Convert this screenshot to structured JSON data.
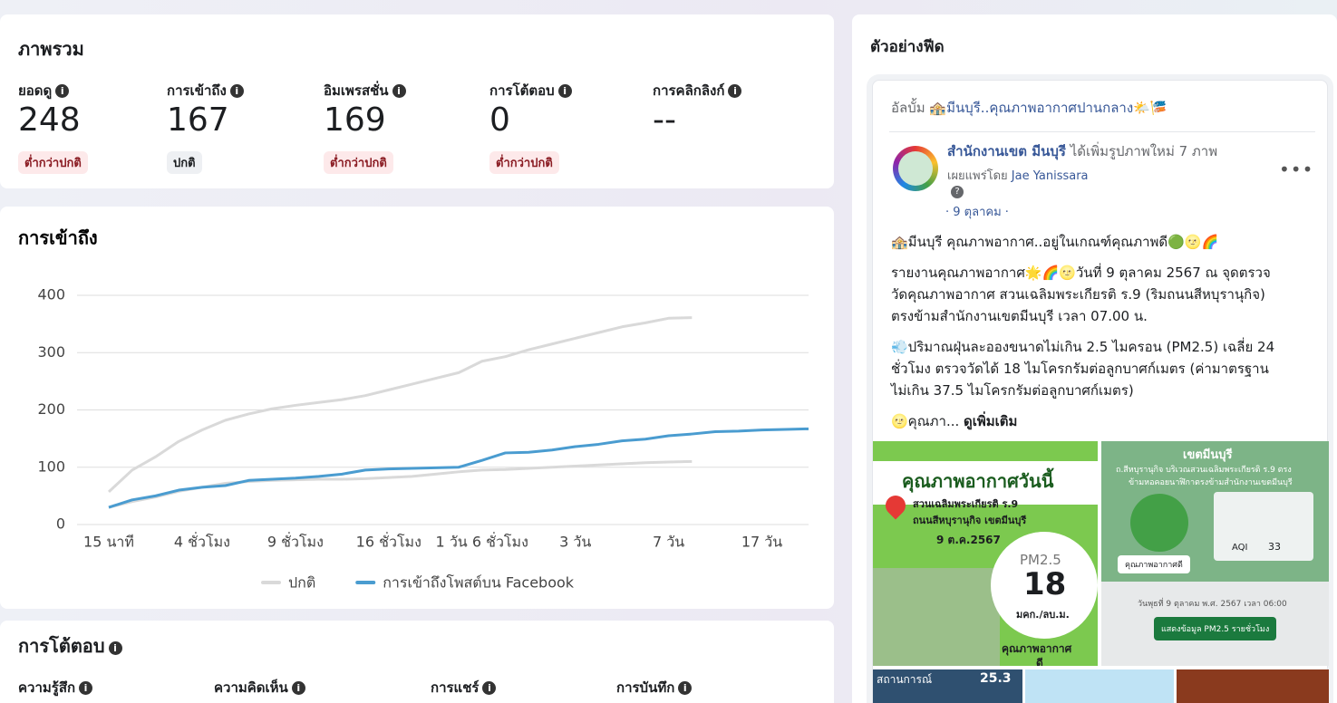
{
  "overview": {
    "title": "ภาพรวม",
    "metrics": [
      {
        "label": "ยอดดู",
        "value": 248,
        "status": "ต่ำกว่าปกติ"
      },
      {
        "label": "การเข้าถึง",
        "value": 167,
        "status": "ปกติ"
      },
      {
        "label": "อิมเพรสชั่น",
        "value": 169,
        "status": "ต่ำกว่าปกติ"
      },
      {
        "label": "การโต้ตอบ",
        "value": 0,
        "status": "ต่ำกว่าปกติ"
      },
      {
        "label": "การคลิกลิงก์",
        "value": "--"
      }
    ]
  },
  "chart_data": {
    "type": "line",
    "title": "การเข้าถึง",
    "categories": [
      "15 นาที",
      null,
      null,
      null,
      "4 ชั่วโมง",
      null,
      null,
      null,
      "9 ชั่วโมง",
      null,
      null,
      null,
      "16 ชั่วโมง",
      null,
      null,
      null,
      "1 วัน 6 ชั่วโมง",
      null,
      null,
      null,
      "3 วัน",
      null,
      null,
      null,
      "7 วัน",
      null,
      null,
      null,
      "17 วัน",
      null,
      null
    ],
    "series": [
      {
        "name": "ปกติ",
        "color": "#d9d9d9",
        "values": [
          57,
          95,
          118,
          145,
          165,
          182,
          193,
          202,
          208,
          213,
          218,
          225,
          235,
          245,
          255,
          265,
          285,
          293,
          305,
          315,
          325,
          335,
          345,
          352,
          360,
          361,
          null,
          null,
          null,
          null,
          null
        ],
        "lower_values": [
          30,
          40,
          48,
          58,
          65,
          72,
          75,
          77,
          78,
          79,
          79,
          80,
          82,
          84,
          88,
          92,
          95,
          96,
          98,
          100,
          102,
          104,
          106,
          108,
          109,
          110,
          null,
          null,
          null,
          null,
          null
        ]
      },
      {
        "name": "การเข้าถึงโพสต์บน Facebook",
        "color": "#4a9cd0",
        "values": [
          30,
          43,
          50,
          60,
          65,
          68,
          77,
          79,
          81,
          84,
          88,
          95,
          97,
          98,
          99,
          100,
          112,
          125,
          126,
          130,
          136,
          140,
          146,
          149,
          155,
          158,
          162,
          163,
          165,
          166,
          167
        ]
      }
    ],
    "ylim": [
      0,
      400
    ],
    "yticks": [
      0,
      100,
      200,
      300,
      400
    ],
    "grid": true,
    "legend": "bottom"
  },
  "interactions": {
    "title": "การโต้ตอบ",
    "columns": [
      "ความรู้สึก",
      "ความคิดเห็น",
      "การแชร์",
      "การบันทึก"
    ]
  },
  "feed": {
    "title": "ตัวอย่างฟีด",
    "album_prefix": "อัลบั้ม",
    "album_name": "🏤มีนบุรี..คุณภาพอากาศปานกลาง🌤️🎏",
    "page_name": "สำนักงานเขต มีนบุรี",
    "action": "ได้เพิ่มรูปภาพใหม่ 7 ภาพ",
    "published_by": "เผยแพร่โดย",
    "publisher": "Jae Yanissara",
    "date": "· 9 ตุลาคม ·",
    "paragraphs": [
      [
        "🏤มีนบุรี คุณภาพอากาศ..อยู่ในเกณฑ์คุณภาพดี🟢🌝🌈"
      ],
      [
        "รายงานคุณภาพอากาศ🌟🌈🌝วันที่ 9 ตุลาคม 2567 ณ จุดตรวจ",
        "วัดคุณภาพอากาศ สวนเฉลิมพระเกียรติ ร.9 (ริมถนนสีหบุรานุกิจ)",
        "ตรงข้ามสำนักงานเขตมีนบุรี เวลา 07.00 น."
      ],
      [
        "💨ปริมาณฝุ่นละอองขนาดไม่เกิน 2.5 ไมครอน (PM2.5) เฉลี่ย 24",
        "ชั่วโมง ตรวจวัดได้ 18 ไมโครกรัมต่อลูกบาศก์เมตร (ค่ามาตรฐาน",
        "ไม่เกิน 37.5 ไมโครกรัมต่อลูกบาศก์เมตร)"
      ]
    ],
    "truncated": "🌝คุณภา...",
    "see_more": "ดูเพิ่มเติม",
    "image1": {
      "heading": "คุณภาพอากาศวันนี้",
      "place": "สวนเฉลิมพระเกียรติ ร.9",
      "road": "ถนนสีหบุรานุกิจ เขตมีนบุรี",
      "date": "9 ต.ค.2567",
      "metric": "PM2.5",
      "reading": "18",
      "unit": "มคก./ลบ.ม.",
      "quality": "คุณภาพอากาศ",
      "level": "ดี"
    },
    "image2": {
      "heading": "เขตมีนบุรี",
      "line1": "ถ.สีหบุรานุกิจ บริเวณสวนเฉลิมพระเกียรติ ร.9 ตรง",
      "line2": "ข้ามหอคอยนาฬิกาตรงข้ามสำนักงานเขตมีนบุรี",
      "status": "คุณภาพอากาศดี",
      "aqi_label": "AQI",
      "aqi": "33",
      "timestamp": "วันพุธที่ 9 ตุลาคม พ.ศ. 2567 เวลา 06:00",
      "button": "แสดงข้อมูล PM2.5 รายชั่วโมง"
    },
    "image3": {
      "heading": "สถานการณ์",
      "reading": "25.3"
    }
  }
}
